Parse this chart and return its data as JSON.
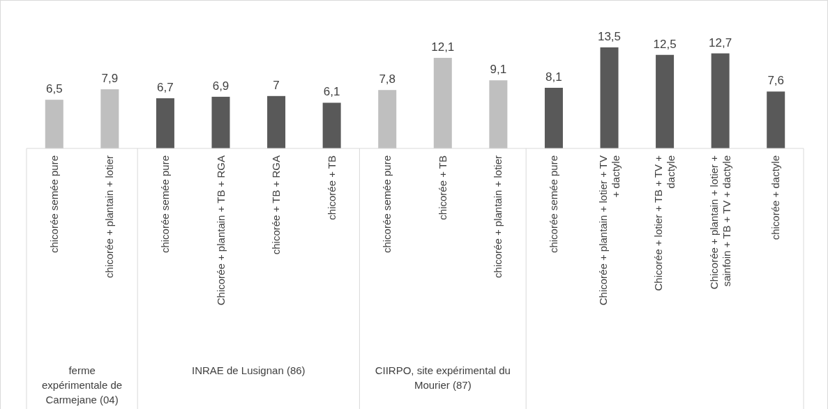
{
  "chart_data": {
    "type": "bar",
    "categories": [
      "chicorée semée pure",
      "chicorée + plantain + lotier",
      "chicorée semée pure",
      "Chicorée + plantain + TB + RGA",
      "chicorée + TB + RGA",
      "chicorée + TB",
      "chicorée semée pure",
      "chicorée + TB",
      "chicorée + plantain + lotier",
      "chicorée semée pure",
      "Chicorée + plantain + lotier + TV + dactyle",
      "Chicorée +  lotier + TB + TV + dactyle",
      "Chicorée + plantain + lotier + sainfoin + TB + TV + dactyle",
      "chicorée + dactyle"
    ],
    "values": [
      6.5,
      7.9,
      6.7,
      6.9,
      7,
      6.1,
      7.8,
      12.1,
      9.1,
      8.1,
      13.5,
      12.5,
      12.7,
      7.6
    ],
    "value_labels": [
      "6,5",
      "7,9",
      "6,7",
      "6,9",
      "7",
      "6,1",
      "7,8",
      "12,1",
      "9,1",
      "8,1",
      "13,5",
      "12,5",
      "12,7",
      "7,6"
    ],
    "colors": [
      "#bfbfbf",
      "#bfbfbf",
      "#595959",
      "#595959",
      "#595959",
      "#595959",
      "#bfbfbf",
      "#bfbfbf",
      "#bfbfbf",
      "#595959",
      "#595959",
      "#595959",
      "#595959",
      "#595959"
    ],
    "annotations": [
      "ferme expérimentale de Carmejane (04)",
      "INRAE de Lusignan (86)",
      "CIIRPO, site expérimental du Mourier (87)"
    ]
  }
}
